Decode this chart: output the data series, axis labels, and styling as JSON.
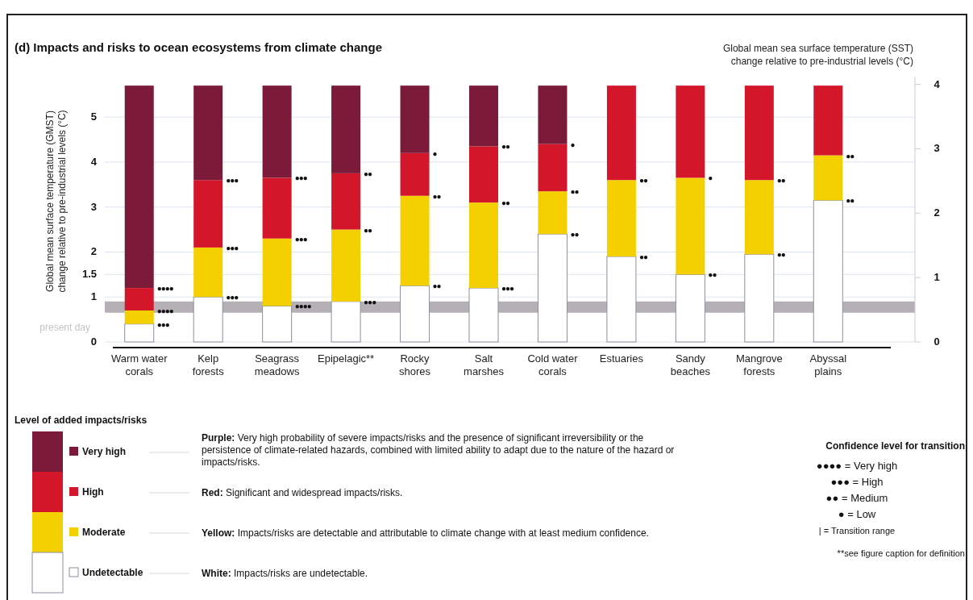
{
  "chart_data": {
    "type": "bar",
    "stacked": true,
    "title": "(d) Impacts and risks to ocean ecosystems from climate change",
    "ylabel": "Global mean surface temperature (GMST)\nchange relative to pre-industrial levels (°C)",
    "y2label": "Global mean sea surface temperature (SST)\nchange relative to pre-industrial levels (°C)",
    "categories": [
      "Warm water\ncorals",
      "Kelp\nforests",
      "Seagrass\nmeadows",
      "Epipelagic**",
      "Rocky\nshores",
      "Salt\nmarshes",
      "Cold water\ncorals",
      "Estuaries",
      "Sandy\nbeaches",
      "Mangrove\nforests",
      "Abyssal\nplains"
    ],
    "series": [
      {
        "name": "Undetectable",
        "color": "#ffffff",
        "values": [
          0.4,
          1.0,
          0.8,
          0.9,
          1.25,
          1.2,
          2.4,
          1.9,
          1.5,
          1.95,
          3.15
        ]
      },
      {
        "name": "Moderate",
        "color": "#f5d000",
        "values": [
          0.3,
          1.1,
          1.5,
          1.6,
          2.0,
          1.9,
          0.95,
          1.7,
          2.15,
          1.65,
          1.0
        ]
      },
      {
        "name": "High",
        "color": "#d4162b",
        "values": [
          0.5,
          1.5,
          1.35,
          1.25,
          0.95,
          1.25,
          1.05,
          2.1,
          2.05,
          2.1,
          1.55
        ]
      },
      {
        "name": "Very high",
        "color": "#7c1a3a",
        "values": [
          4.5,
          2.1,
          2.05,
          1.95,
          1.5,
          1.35,
          1.3,
          0,
          0,
          0,
          0
        ]
      }
    ],
    "ylim": [
      0,
      5.9
    ],
    "yticks": [
      0,
      1,
      1.5,
      2,
      3,
      4,
      5
    ],
    "y2lim": [
      0,
      4.12
    ],
    "y2ticks": [
      0,
      1,
      2,
      3,
      4
    ],
    "grid": "y",
    "legend": "bottom left",
    "bands": [
      {
        "axis": "y",
        "from": 0.65,
        "to": 0.9,
        "label": "present day",
        "color": "#b5b0b5"
      }
    ],
    "annotations": [
      "Level of added impacts/risks",
      "Purple: Very high probability of severe impacts/risks and the presence of significant irreversibility or the persistence of climate-related hazards, combined with limited ability to adapt due to the nature of the hazard or impacts/risks.",
      "Red: Significant and widespread impacts/risks.",
      "Yellow: Impacts/risks are detectable and attributable to climate change with at least medium confidence.",
      "White: Impacts/risks are undetectable.",
      "Confidence level for transition",
      "●●●● = Very high",
      "●●● = High",
      "●● = Medium",
      "● = Low",
      "| = Transition range",
      "**see figure caption for definition",
      {
        "text": "●●●●",
        "x": "Warm water\ncorals",
        "y": 1.2
      },
      {
        "text": "●●●●",
        "x": "Warm water\ncorals",
        "y": 0.7
      },
      {
        "text": "●●●",
        "x": "Warm water\ncorals",
        "y": 0.4
      },
      {
        "text": "●●●",
        "x": "Kelp\nforests",
        "y": 3.6
      },
      {
        "text": "●●●",
        "x": "Kelp\nforests",
        "y": 2.1
      },
      {
        "text": "●●●",
        "x": "Kelp\nforests",
        "y": 1.0
      },
      {
        "text": "●●●",
        "x": "Seagrass\nmeadows",
        "y": 3.65
      },
      {
        "text": "●●●",
        "x": "Seagrass\nmeadows",
        "y": 2.3
      },
      {
        "text": "●●●●",
        "x": "Seagrass\nmeadows",
        "y": 0.8
      },
      {
        "text": "●●",
        "x": "Epipelagic**",
        "y": 3.75
      },
      {
        "text": "●●",
        "x": "Epipelagic**",
        "y": 2.5
      },
      {
        "text": "●●●",
        "x": "Epipelagic**",
        "y": 0.9
      },
      {
        "text": "●",
        "x": "Rocky\nshores",
        "y": 4.2
      },
      {
        "text": "●●",
        "x": "Rocky\nshores",
        "y": 3.25
      },
      {
        "text": "●●",
        "x": "Rocky\nshores",
        "y": 1.25
      },
      {
        "text": "●●",
        "x": "Salt\nmarshes",
        "y": 4.35
      },
      {
        "text": "●●",
        "x": "Salt\nmarshes",
        "y": 3.1
      },
      {
        "text": "●●●",
        "x": "Salt\nmarshes",
        "y": 1.2
      },
      {
        "text": "●",
        "x": "Cold water\ncorals",
        "y": 4.4
      },
      {
        "text": "●●",
        "x": "Cold water\ncorals",
        "y": 3.35
      },
      {
        "text": "●●",
        "x": "Cold water\ncorals",
        "y": 2.4
      },
      {
        "text": "●●",
        "x": "Estuaries",
        "y": 3.6
      },
      {
        "text": "●●",
        "x": "Estuaries",
        "y": 1.9
      },
      {
        "text": "●",
        "x": "Sandy\nbeaches",
        "y": 3.65
      },
      {
        "text": "●●",
        "x": "Sandy\nbeaches",
        "y": 1.5
      },
      {
        "text": "●●",
        "x": "Mangrove\nforests",
        "y": 3.6
      },
      {
        "text": "●●",
        "x": "Mangrove\nforests",
        "y": 1.95
      },
      {
        "text": "●●",
        "x": "Abyssal\nplains",
        "y": 4.15
      },
      {
        "text": "●●",
        "x": "Abyssal\nplains",
        "y": 3.15
      }
    ]
  }
}
